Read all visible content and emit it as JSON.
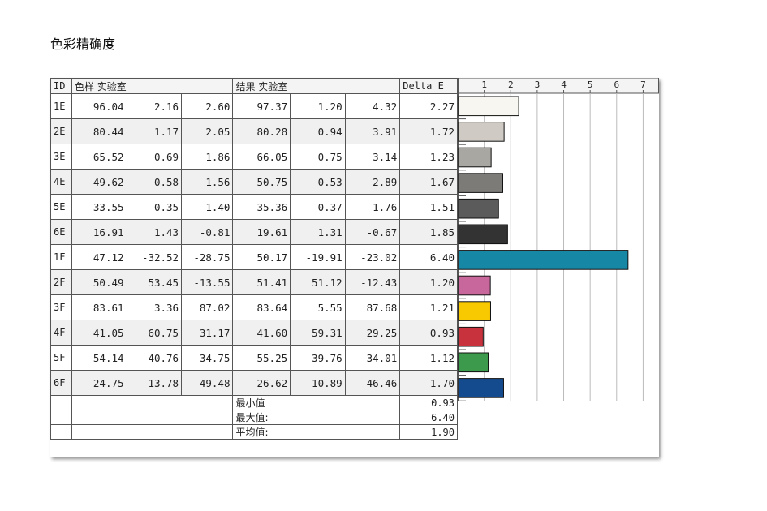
{
  "title": "色彩精确度",
  "table": {
    "headers": {
      "id": "ID",
      "sample": "色样 实验室",
      "result": "结果 实验室",
      "delta": "Delta E"
    },
    "rows": [
      {
        "id": "1E",
        "s": [
          "96.04",
          "2.16",
          "2.60"
        ],
        "r": [
          "97.37",
          "1.20",
          "4.32"
        ],
        "de": "2.27"
      },
      {
        "id": "2E",
        "s": [
          "80.44",
          "1.17",
          "2.05"
        ],
        "r": [
          "80.28",
          "0.94",
          "3.91"
        ],
        "de": "1.72"
      },
      {
        "id": "3E",
        "s": [
          "65.52",
          "0.69",
          "1.86"
        ],
        "r": [
          "66.05",
          "0.75",
          "3.14"
        ],
        "de": "1.23"
      },
      {
        "id": "4E",
        "s": [
          "49.62",
          "0.58",
          "1.56"
        ],
        "r": [
          "50.75",
          "0.53",
          "2.89"
        ],
        "de": "1.67"
      },
      {
        "id": "5E",
        "s": [
          "33.55",
          "0.35",
          "1.40"
        ],
        "r": [
          "35.36",
          "0.37",
          "1.76"
        ],
        "de": "1.51"
      },
      {
        "id": "6E",
        "s": [
          "16.91",
          "1.43",
          "-0.81"
        ],
        "r": [
          "19.61",
          "1.31",
          "-0.67"
        ],
        "de": "1.85"
      },
      {
        "id": "1F",
        "s": [
          "47.12",
          "-32.52",
          "-28.75"
        ],
        "r": [
          "50.17",
          "-19.91",
          "-23.02"
        ],
        "de": "6.40"
      },
      {
        "id": "2F",
        "s": [
          "50.49",
          "53.45",
          "-13.55"
        ],
        "r": [
          "51.41",
          "51.12",
          "-12.43"
        ],
        "de": "1.20"
      },
      {
        "id": "3F",
        "s": [
          "83.61",
          "3.36",
          "87.02"
        ],
        "r": [
          "83.64",
          "5.55",
          "87.68"
        ],
        "de": "1.21"
      },
      {
        "id": "4F",
        "s": [
          "41.05",
          "60.75",
          "31.17"
        ],
        "r": [
          "41.60",
          "59.31",
          "29.25"
        ],
        "de": "0.93"
      },
      {
        "id": "5F",
        "s": [
          "54.14",
          "-40.76",
          "34.75"
        ],
        "r": [
          "55.25",
          "-39.76",
          "34.01"
        ],
        "de": "1.12"
      },
      {
        "id": "6F",
        "s": [
          "24.75",
          "13.78",
          "-49.48"
        ],
        "r": [
          "26.62",
          "10.89",
          "-46.46"
        ],
        "de": "1.70"
      }
    ],
    "stats": [
      {
        "label": "最小值",
        "value": "0.93"
      },
      {
        "label": "最大值:",
        "value": "6.40"
      },
      {
        "label": "平均值:",
        "value": "1.90"
      }
    ]
  },
  "chart_data": {
    "type": "bar",
    "orientation": "horizontal",
    "categories": [
      "1E",
      "2E",
      "3E",
      "4E",
      "5E",
      "6E",
      "1F",
      "2F",
      "3F",
      "4F",
      "5F",
      "6F"
    ],
    "values": [
      2.27,
      1.72,
      1.23,
      1.67,
      1.51,
      1.85,
      6.4,
      1.2,
      1.21,
      0.93,
      1.12,
      1.7
    ],
    "colors": [
      "#f7f6f0",
      "#cfcbc4",
      "#a9a7a2",
      "#7c7b78",
      "#5b5b5b",
      "#333333",
      "#1787a6",
      "#c8679b",
      "#f8c800",
      "#c8323d",
      "#3c9a4c",
      "#144b8e"
    ],
    "xticks": [
      "1",
      "2",
      "3",
      "4",
      "5",
      "6",
      "7"
    ],
    "xlim": [
      0,
      7.6
    ],
    "grid": true
  }
}
